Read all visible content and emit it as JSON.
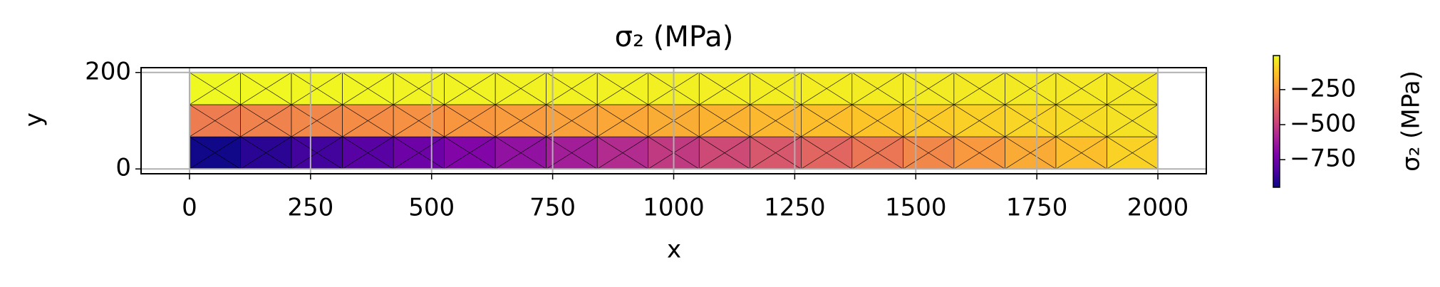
{
  "chart_data": {
    "type": "mesh_colormap",
    "title": "σ₂ (MPa)",
    "x_label": "x",
    "y_label": "y",
    "x": [
      0,
      105.3,
      210.5,
      315.8,
      421.1,
      526.3,
      631.6,
      736.8,
      842.1,
      947.4,
      1052.6,
      1157.9,
      1263.2,
      1368.4,
      1473.7,
      1578.9,
      1684.2,
      1789.5,
      1894.7,
      2000
    ],
    "y": [
      0,
      66.7,
      133.3,
      200
    ],
    "z": [
      [
        -940,
        -893,
        -846,
        -799,
        -752,
        -705,
        -658,
        -611,
        -564,
        -517,
        -470,
        -423,
        -376,
        -329,
        -282,
        -235,
        -188,
        -141,
        -94
      ],
      [
        -310,
        -296,
        -282,
        -268,
        -254,
        -240,
        -226,
        -212,
        -198,
        -184,
        -170,
        -156,
        -142,
        -128,
        -114,
        -100,
        -86,
        -72,
        -58
      ],
      [
        -10,
        -12,
        -14,
        -16,
        -18,
        -20,
        -22,
        -24,
        -26,
        -28,
        -30,
        -32,
        -34,
        -36,
        -38,
        -40,
        -42,
        -44,
        -46
      ]
    ],
    "xlim": [
      -100,
      2100
    ],
    "ylim": [
      -10,
      210
    ],
    "xticks": [
      0,
      250,
      500,
      750,
      1000,
      1250,
      1500,
      1750,
      2000
    ],
    "yticks": [
      0,
      200
    ],
    "grid": true,
    "colormap": "plasma",
    "clim": [
      -947,
      -7
    ],
    "colorbar_label": "σ₂ (MPa)",
    "colorbar_ticks": [
      {
        "value": -250,
        "label": "−250"
      },
      {
        "value": -500,
        "label": "−500"
      },
      {
        "value": -750,
        "label": "−750"
      }
    ]
  }
}
